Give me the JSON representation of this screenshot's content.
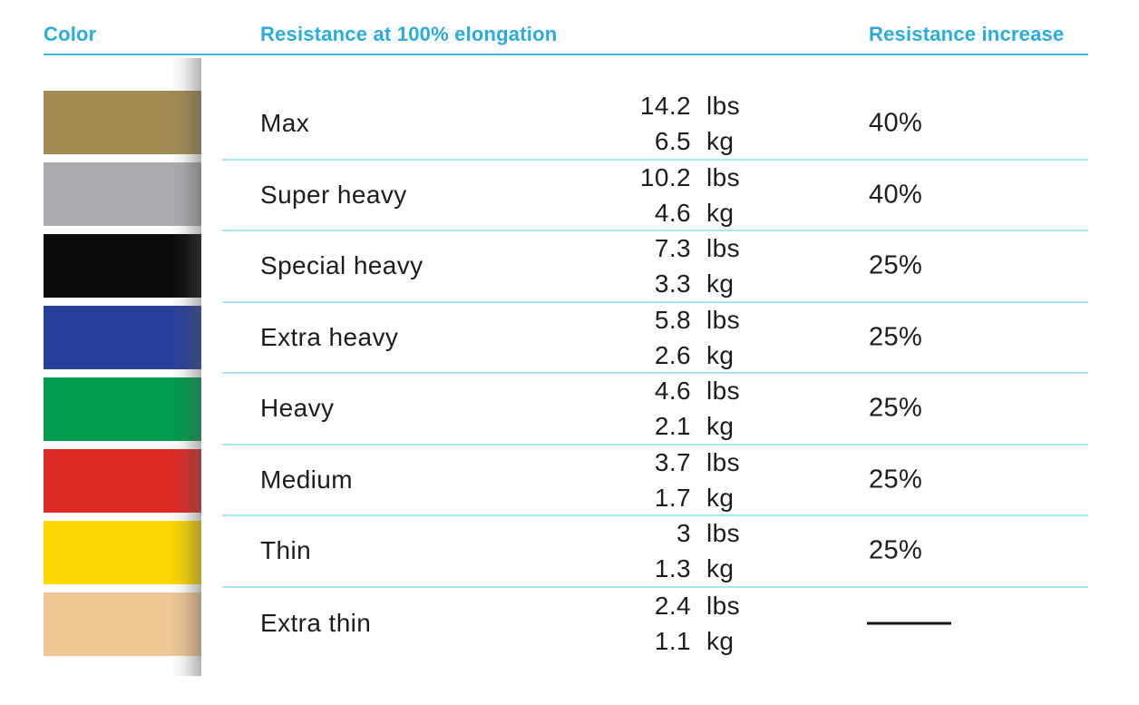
{
  "accent_color": "#29ABE2",
  "separator_color": "#A8E4F5",
  "text_color": "#1d1d1f",
  "headers": {
    "color": "Color",
    "resistance": "Resistance at 100% elongation",
    "increase": "Resistance increase"
  },
  "rows": [
    {
      "band_color_name": "gold",
      "swatch": "#A28B53",
      "label": "Max",
      "lbs_value": "14.2",
      "lbs_unit": "lbs",
      "kg_value": "6.5",
      "kg_unit": "kg",
      "increase": "40%"
    },
    {
      "band_color_name": "silver",
      "swatch": "#A9ABAE",
      "label": "Super heavy",
      "lbs_value": "10.2",
      "lbs_unit": "lbs",
      "kg_value": "4.6",
      "kg_unit": "kg",
      "increase": "40%"
    },
    {
      "band_color_name": "black",
      "swatch": "#0B0B0B",
      "label": "Special heavy",
      "lbs_value": "7.3",
      "lbs_unit": "lbs",
      "kg_value": "3.3",
      "kg_unit": "kg",
      "increase": "25%"
    },
    {
      "band_color_name": "blue",
      "swatch": "#28409B",
      "label": "Extra heavy",
      "lbs_value": "5.8",
      "lbs_unit": "lbs",
      "kg_value": "2.6",
      "kg_unit": "kg",
      "increase": "25%"
    },
    {
      "band_color_name": "green",
      "swatch": "#009C4B",
      "label": "Heavy",
      "lbs_value": "4.6",
      "lbs_unit": "lbs",
      "kg_value": "2.1",
      "kg_unit": "kg",
      "increase": "25%"
    },
    {
      "band_color_name": "red",
      "swatch": "#DE2A25",
      "label": "Medium",
      "lbs_value": "3.7",
      "lbs_unit": "lbs",
      "kg_value": "1.7",
      "kg_unit": "kg",
      "increase": "25%"
    },
    {
      "band_color_name": "yellow",
      "swatch": "#FAD605",
      "label": "Thin",
      "lbs_value": "3",
      "lbs_unit": "lbs",
      "kg_value": "1.3",
      "kg_unit": "kg",
      "increase": "25%"
    },
    {
      "band_color_name": "beige",
      "swatch": "#EFC795",
      "label": "Extra thin",
      "lbs_value": "2.4",
      "lbs_unit": "lbs",
      "kg_value": "1.1",
      "kg_unit": "kg",
      "increase": "",
      "no_increase_marker": "dash"
    }
  ],
  "chart_data": {
    "type": "table",
    "title": "",
    "columns": [
      "Color",
      "Resistance at 100% elongation",
      "Resistance increase"
    ],
    "rows": [
      {
        "color": "gold",
        "label": "Max",
        "resistance_lbs": 14.2,
        "resistance_kg": 6.5,
        "resistance_increase_pct": 40
      },
      {
        "color": "silver",
        "label": "Super heavy",
        "resistance_lbs": 10.2,
        "resistance_kg": 4.6,
        "resistance_increase_pct": 40
      },
      {
        "color": "black",
        "label": "Special heavy",
        "resistance_lbs": 7.3,
        "resistance_kg": 3.3,
        "resistance_increase_pct": 25
      },
      {
        "color": "blue",
        "label": "Extra heavy",
        "resistance_lbs": 5.8,
        "resistance_kg": 2.6,
        "resistance_increase_pct": 25
      },
      {
        "color": "green",
        "label": "Heavy",
        "resistance_lbs": 4.6,
        "resistance_kg": 2.1,
        "resistance_increase_pct": 25
      },
      {
        "color": "red",
        "label": "Medium",
        "resistance_lbs": 3.7,
        "resistance_kg": 1.7,
        "resistance_increase_pct": 25
      },
      {
        "color": "yellow",
        "label": "Thin",
        "resistance_lbs": 3,
        "resistance_kg": 1.3,
        "resistance_increase_pct": 25
      },
      {
        "color": "beige",
        "label": "Extra thin",
        "resistance_lbs": 2.4,
        "resistance_kg": 1.1,
        "resistance_increase_pct": null
      }
    ]
  }
}
